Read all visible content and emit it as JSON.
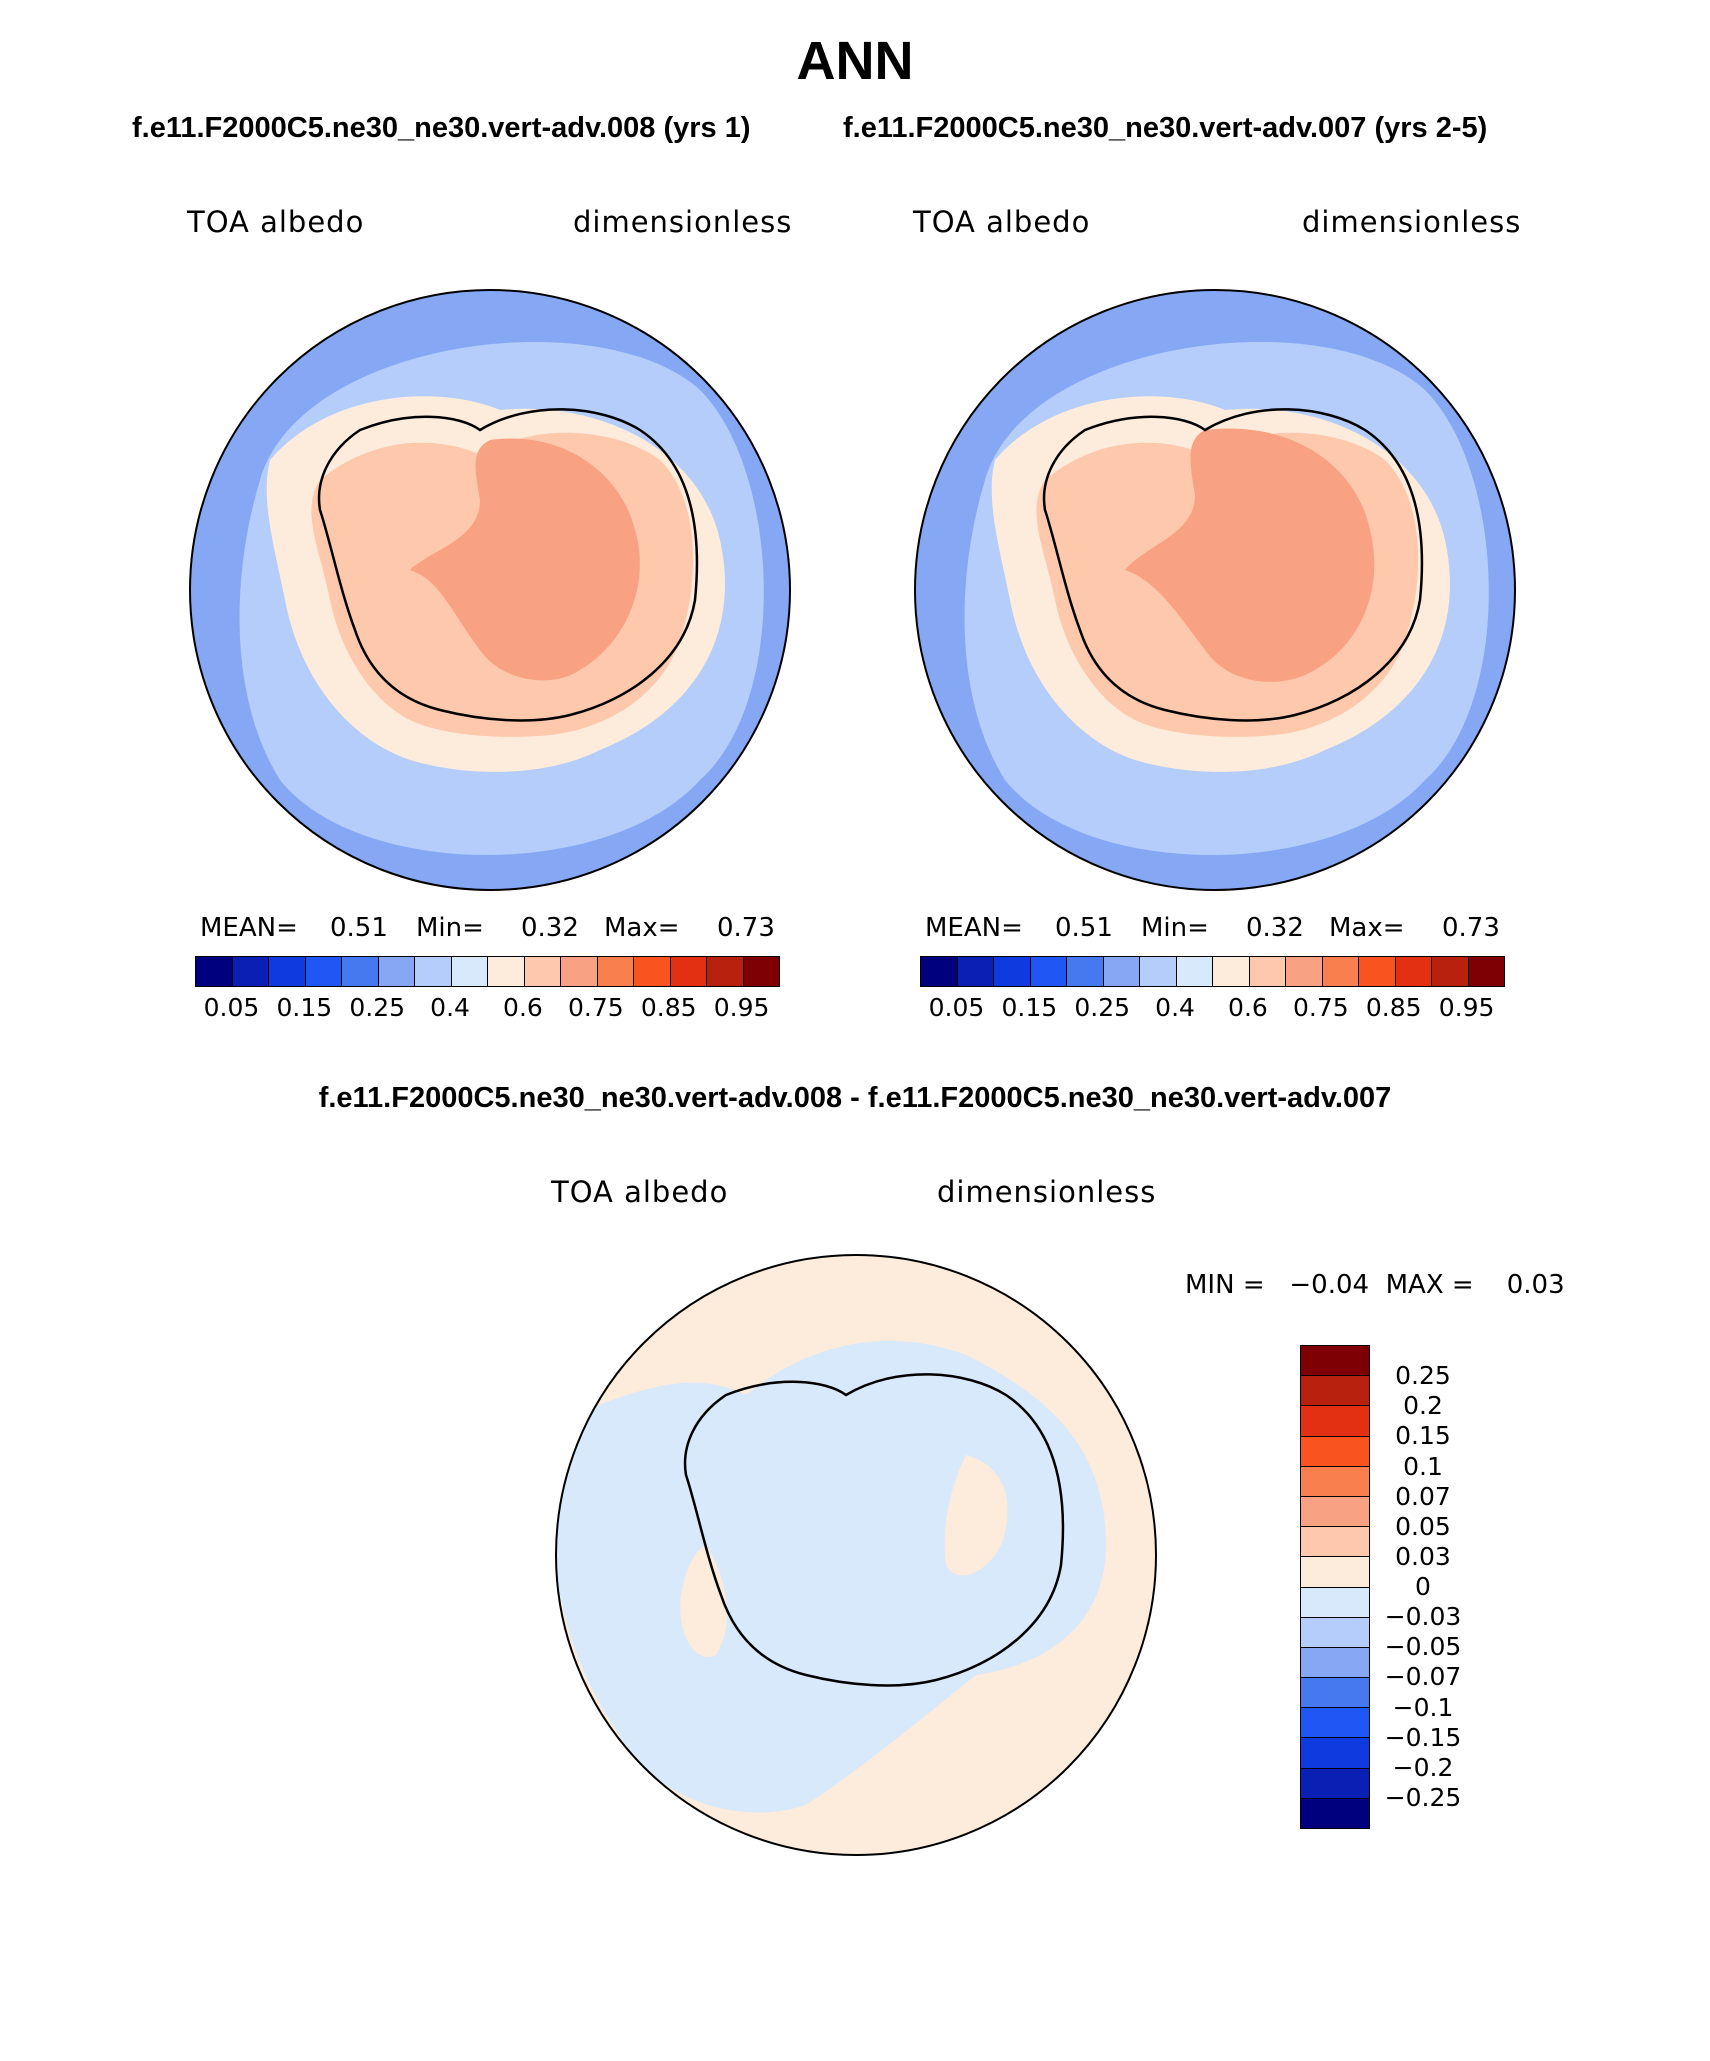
{
  "figure": {
    "title": "ANN",
    "subtitle_left": "f.e11.F2000C5.ne30_ne30.vert-adv.008 (yrs 1)",
    "subtitle_right": "f.e11.F2000C5.ne30_ne30.vert-adv.007 (yrs 2-5)",
    "diff_title": "f.e11.F2000C5.ne30_ne30.vert-adv.008 - f.e11.F2000C5.ne30_ne30.vert-adv.007"
  },
  "colors": {
    "abs_scale": [
      "#00007f",
      "#0a1fb3",
      "#0f3ae0",
      "#1f56f4",
      "#4678ef",
      "#86a8f4",
      "#b4cdfa",
      "#d8e9fb",
      "#fdebdb",
      "#fdc8ac",
      "#f8a283",
      "#f97f4e",
      "#f9531f",
      "#e33012",
      "#b8210d",
      "#7f0004"
    ],
    "diff_scale": [
      "#7f0004",
      "#b8210d",
      "#e33012",
      "#f9531f",
      "#f97f4e",
      "#f8a283",
      "#fdc8ac",
      "#fdebdb",
      "#d8e9fb",
      "#b4cdfa",
      "#86a8f4",
      "#4678ef",
      "#1f56f4",
      "#0f3ae0",
      "#0a1fb3",
      "#00007f"
    ]
  },
  "panel1": {
    "label_left": "TOA albedo",
    "label_right": "dimensionless",
    "mean_label": "MEAN=",
    "mean_value": "0.51",
    "min_label": "Min=",
    "min_value": "0.32",
    "max_label": "Max=",
    "max_value": "0.73"
  },
  "panel2": {
    "label_left": "TOA albedo",
    "label_right": "dimensionless",
    "mean_label": "MEAN=",
    "mean_value": "0.51",
    "min_label": "Min=",
    "min_value": "0.32",
    "max_label": "Max=",
    "max_value": "0.73"
  },
  "panel3": {
    "label_left": "TOA albedo",
    "label_right": "dimensionless",
    "minmax": "MIN =   −0.04  MAX =    0.03"
  },
  "chart_data": [
    {
      "type": "heatmap",
      "projection": "south polar stereographic",
      "title": "f.e11.F2000C5.ne30_ne30.vert-adv.008 (yrs 1)",
      "variable": "TOA albedo",
      "units": "dimensionless",
      "mean": 0.51,
      "min": 0.32,
      "max": 0.73,
      "colorbar_ticks": [
        "0.05",
        "0.15",
        "0.25",
        "0.4",
        "0.6",
        "0.75",
        "0.85",
        "0.95"
      ]
    },
    {
      "type": "heatmap",
      "projection": "south polar stereographic",
      "title": "f.e11.F2000C5.ne30_ne30.vert-adv.007 (yrs 2-5)",
      "variable": "TOA albedo",
      "units": "dimensionless",
      "mean": 0.51,
      "min": 0.32,
      "max": 0.73,
      "colorbar_ticks": [
        "0.05",
        "0.15",
        "0.25",
        "0.4",
        "0.6",
        "0.75",
        "0.85",
        "0.95"
      ]
    },
    {
      "type": "heatmap",
      "projection": "south polar stereographic",
      "title": "f.e11.F2000C5.ne30_ne30.vert-adv.008 - f.e11.F2000C5.ne30_ne30.vert-adv.007",
      "variable": "TOA albedo",
      "units": "dimensionless",
      "min": -0.04,
      "max": 0.03,
      "colorbar_ticks": [
        "0.25",
        "0.2",
        "0.15",
        "0.1",
        "0.07",
        "0.05",
        "0.03",
        "0",
        "−0.03",
        "−0.05",
        "−0.07",
        "−0.1",
        "−0.15",
        "−0.2",
        "−0.25"
      ]
    }
  ]
}
